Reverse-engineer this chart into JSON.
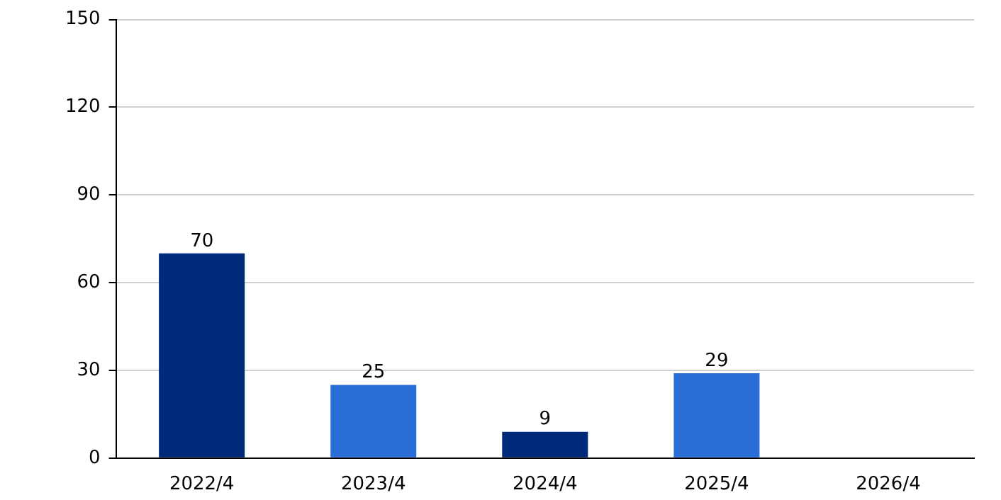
{
  "chart_data": {
    "type": "bar",
    "categories": [
      "2022/4",
      "2023/4",
      "2024/4",
      "2025/4",
      "2026/4"
    ],
    "values": [
      70,
      25,
      9,
      29,
      null
    ],
    "colors": [
      "#002b7a",
      "#2a6fd8",
      "#002b7a",
      "#2a6fd8",
      "#2a6fd8"
    ],
    "ylim": [
      0,
      150
    ],
    "yticks": [
      0,
      30,
      60,
      90,
      120,
      150
    ],
    "grid": "y",
    "data_labels": true
  }
}
